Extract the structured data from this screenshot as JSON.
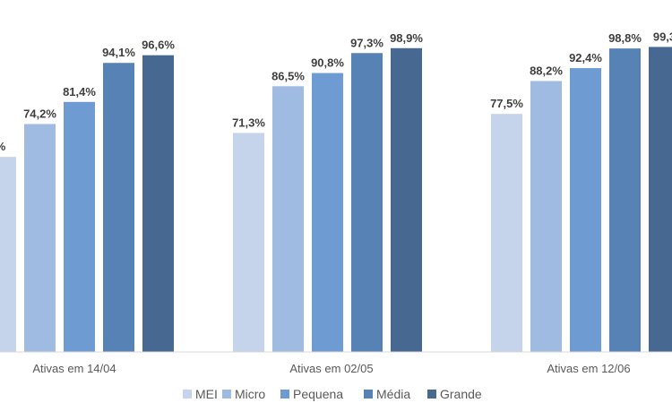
{
  "chart_data": {
    "type": "bar",
    "categories": [
      "Ativas em 14/04",
      "Ativas em 02/05",
      "Ativas em 12/06"
    ],
    "series": [
      {
        "name": "MEI",
        "values": [
          null,
          71.3,
          77.5
        ],
        "value_labels": [
          "%",
          "71,3%",
          "77,5%"
        ],
        "color": "#c5d4ea"
      },
      {
        "name": "Micro",
        "values": [
          74.2,
          86.5,
          88.2
        ],
        "value_labels": [
          "74,2%",
          "86,5%",
          "88,2%"
        ],
        "color": "#9fbbe1"
      },
      {
        "name": "Pequena",
        "values": [
          81.4,
          90.8,
          92.4
        ],
        "value_labels": [
          "81,4%",
          "90,8%",
          "92,4%"
        ],
        "color": "#6d9bd2"
      },
      {
        "name": "Média",
        "values": [
          94.1,
          97.3,
          98.8
        ],
        "value_labels": [
          "94,1%",
          "97,3%",
          "98,8%"
        ],
        "color": "#5782b6"
      },
      {
        "name": "Grande",
        "values": [
          96.6,
          98.9,
          99.3
        ],
        "value_labels": [
          "96,6%",
          "98,9%",
          "99,3"
        ],
        "color": "#476890"
      }
    ],
    "ylim": [
      0,
      100
    ],
    "grid": false,
    "legend_position": "bottom",
    "title": "",
    "xlabel": "",
    "ylabel": ""
  }
}
